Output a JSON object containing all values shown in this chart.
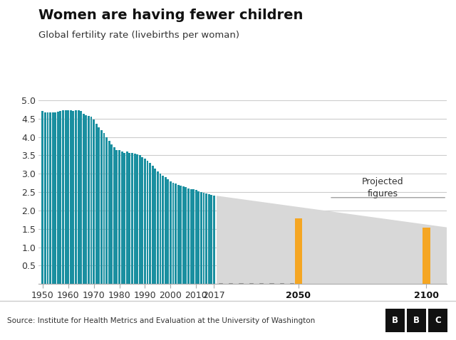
{
  "title": "Women are having fewer children",
  "subtitle": "Global fertility rate (livebirths per woman)",
  "source": "Source: Institute for Health Metrics and Evaluation at the University of Washington",
  "years": [
    1950,
    1951,
    1952,
    1953,
    1954,
    1955,
    1956,
    1957,
    1958,
    1959,
    1960,
    1961,
    1962,
    1963,
    1964,
    1965,
    1966,
    1967,
    1968,
    1969,
    1970,
    1971,
    1972,
    1973,
    1974,
    1975,
    1976,
    1977,
    1978,
    1979,
    1980,
    1981,
    1982,
    1983,
    1984,
    1985,
    1986,
    1987,
    1988,
    1989,
    1990,
    1991,
    1992,
    1993,
    1994,
    1995,
    1996,
    1997,
    1998,
    1999,
    2000,
    2001,
    2002,
    2003,
    2004,
    2005,
    2006,
    2007,
    2008,
    2009,
    2010,
    2011,
    2012,
    2013,
    2014,
    2015,
    2016,
    2017
  ],
  "values": [
    4.7,
    4.68,
    4.68,
    4.67,
    4.67,
    4.67,
    4.69,
    4.7,
    4.72,
    4.72,
    4.72,
    4.72,
    4.7,
    4.72,
    4.72,
    4.7,
    4.63,
    4.6,
    4.57,
    4.55,
    4.47,
    4.37,
    4.27,
    4.18,
    4.1,
    4.0,
    3.9,
    3.8,
    3.72,
    3.65,
    3.65,
    3.6,
    3.57,
    3.6,
    3.57,
    3.57,
    3.55,
    3.53,
    3.5,
    3.45,
    3.42,
    3.35,
    3.3,
    3.22,
    3.15,
    3.07,
    3.0,
    2.95,
    2.9,
    2.85,
    2.8,
    2.76,
    2.73,
    2.7,
    2.68,
    2.65,
    2.63,
    2.6,
    2.58,
    2.57,
    2.55,
    2.52,
    2.5,
    2.48,
    2.46,
    2.44,
    2.42,
    2.4
  ],
  "projected_years": [
    2050,
    2100
  ],
  "projected_values": [
    1.79,
    1.54
  ],
  "bar_color": "#1a8fa0",
  "projected_bar_color": "#f5a623",
  "projection_bg_color": "#d8d8d8",
  "background_color": "#ffffff",
  "ylim": [
    0,
    5.0
  ],
  "yticks": [
    0.0,
    0.5,
    1.0,
    1.5,
    2.0,
    2.5,
    3.0,
    3.5,
    4.0,
    4.5,
    5.0
  ],
  "ytick_labels": [
    "",
    "0.5",
    "1.0",
    "1.5",
    "2.0",
    "2.5",
    "3.0",
    "3.5",
    "4.0",
    "4.5",
    "5.0"
  ],
  "xtick_positions": [
    1950,
    1960,
    1970,
    1980,
    1990,
    2000,
    2010,
    2017,
    2050,
    2100
  ],
  "xtick_labels": [
    "1950",
    "1960",
    "1970",
    "1980",
    "1990",
    "2000",
    "2010",
    "2017",
    "2050",
    "2100"
  ],
  "annotation_text": "Projected\nfigures",
  "grid_color": "#cccccc",
  "footer_bg_color": "#f2f2f2",
  "bar_width": 0.8,
  "proj_bar_width": 3.0,
  "xlim_left": 1948.5,
  "xlim_right": 2108
}
